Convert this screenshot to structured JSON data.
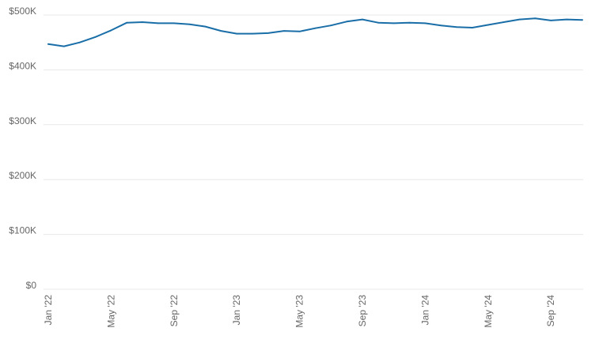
{
  "chart_data": {
    "type": "line",
    "title": "",
    "xlabel": "",
    "ylabel": "",
    "ylim": [
      0,
      500000
    ],
    "y_ticks": [
      {
        "value": 500000,
        "label": "$500K"
      },
      {
        "value": 400000,
        "label": "$400K"
      },
      {
        "value": 300000,
        "label": "$300K"
      },
      {
        "value": 200000,
        "label": "$200K"
      },
      {
        "value": 100000,
        "label": "$100K"
      },
      {
        "value": 0,
        "label": "$0"
      }
    ],
    "x_ticks": [
      {
        "month": "2022-01",
        "label": "Jan '22"
      },
      {
        "month": "2022-05",
        "label": "May '22"
      },
      {
        "month": "2022-09",
        "label": "Sep '22"
      },
      {
        "month": "2023-01",
        "label": "Jan '23"
      },
      {
        "month": "2023-05",
        "label": "May '23"
      },
      {
        "month": "2023-09",
        "label": "Sep '23"
      },
      {
        "month": "2024-01",
        "label": "Jan '24"
      },
      {
        "month": "2024-05",
        "label": "May '24"
      },
      {
        "month": "2024-09",
        "label": "Sep '24"
      }
    ],
    "grid": true,
    "line_color": "#1a6ea8",
    "grid_color": "#e8e8e8",
    "series": [
      {
        "x": [
          "2022-01",
          "2022-02",
          "2022-03",
          "2022-04",
          "2022-05",
          "2022-06",
          "2022-07",
          "2022-08",
          "2022-09",
          "2022-10",
          "2022-11",
          "2022-12",
          "2023-01",
          "2023-02",
          "2023-03",
          "2023-04",
          "2023-05",
          "2023-06",
          "2023-07",
          "2023-08",
          "2023-09",
          "2023-10",
          "2023-11",
          "2023-12",
          "2024-01",
          "2024-02",
          "2024-03",
          "2024-04",
          "2024-05",
          "2024-06",
          "2024-07",
          "2024-08",
          "2024-09",
          "2024-10",
          "2024-11"
        ],
        "values": [
          447000,
          443000,
          450000,
          460000,
          472000,
          486000,
          487000,
          485000,
          485000,
          483000,
          479000,
          471000,
          466000,
          466000,
          467000,
          471000,
          470000,
          476000,
          481000,
          488000,
          492000,
          486000,
          485000,
          486000,
          485000,
          481000,
          478000,
          477000,
          482000,
          487000,
          492000,
          494000,
          490000,
          492000,
          491000
        ]
      }
    ]
  }
}
